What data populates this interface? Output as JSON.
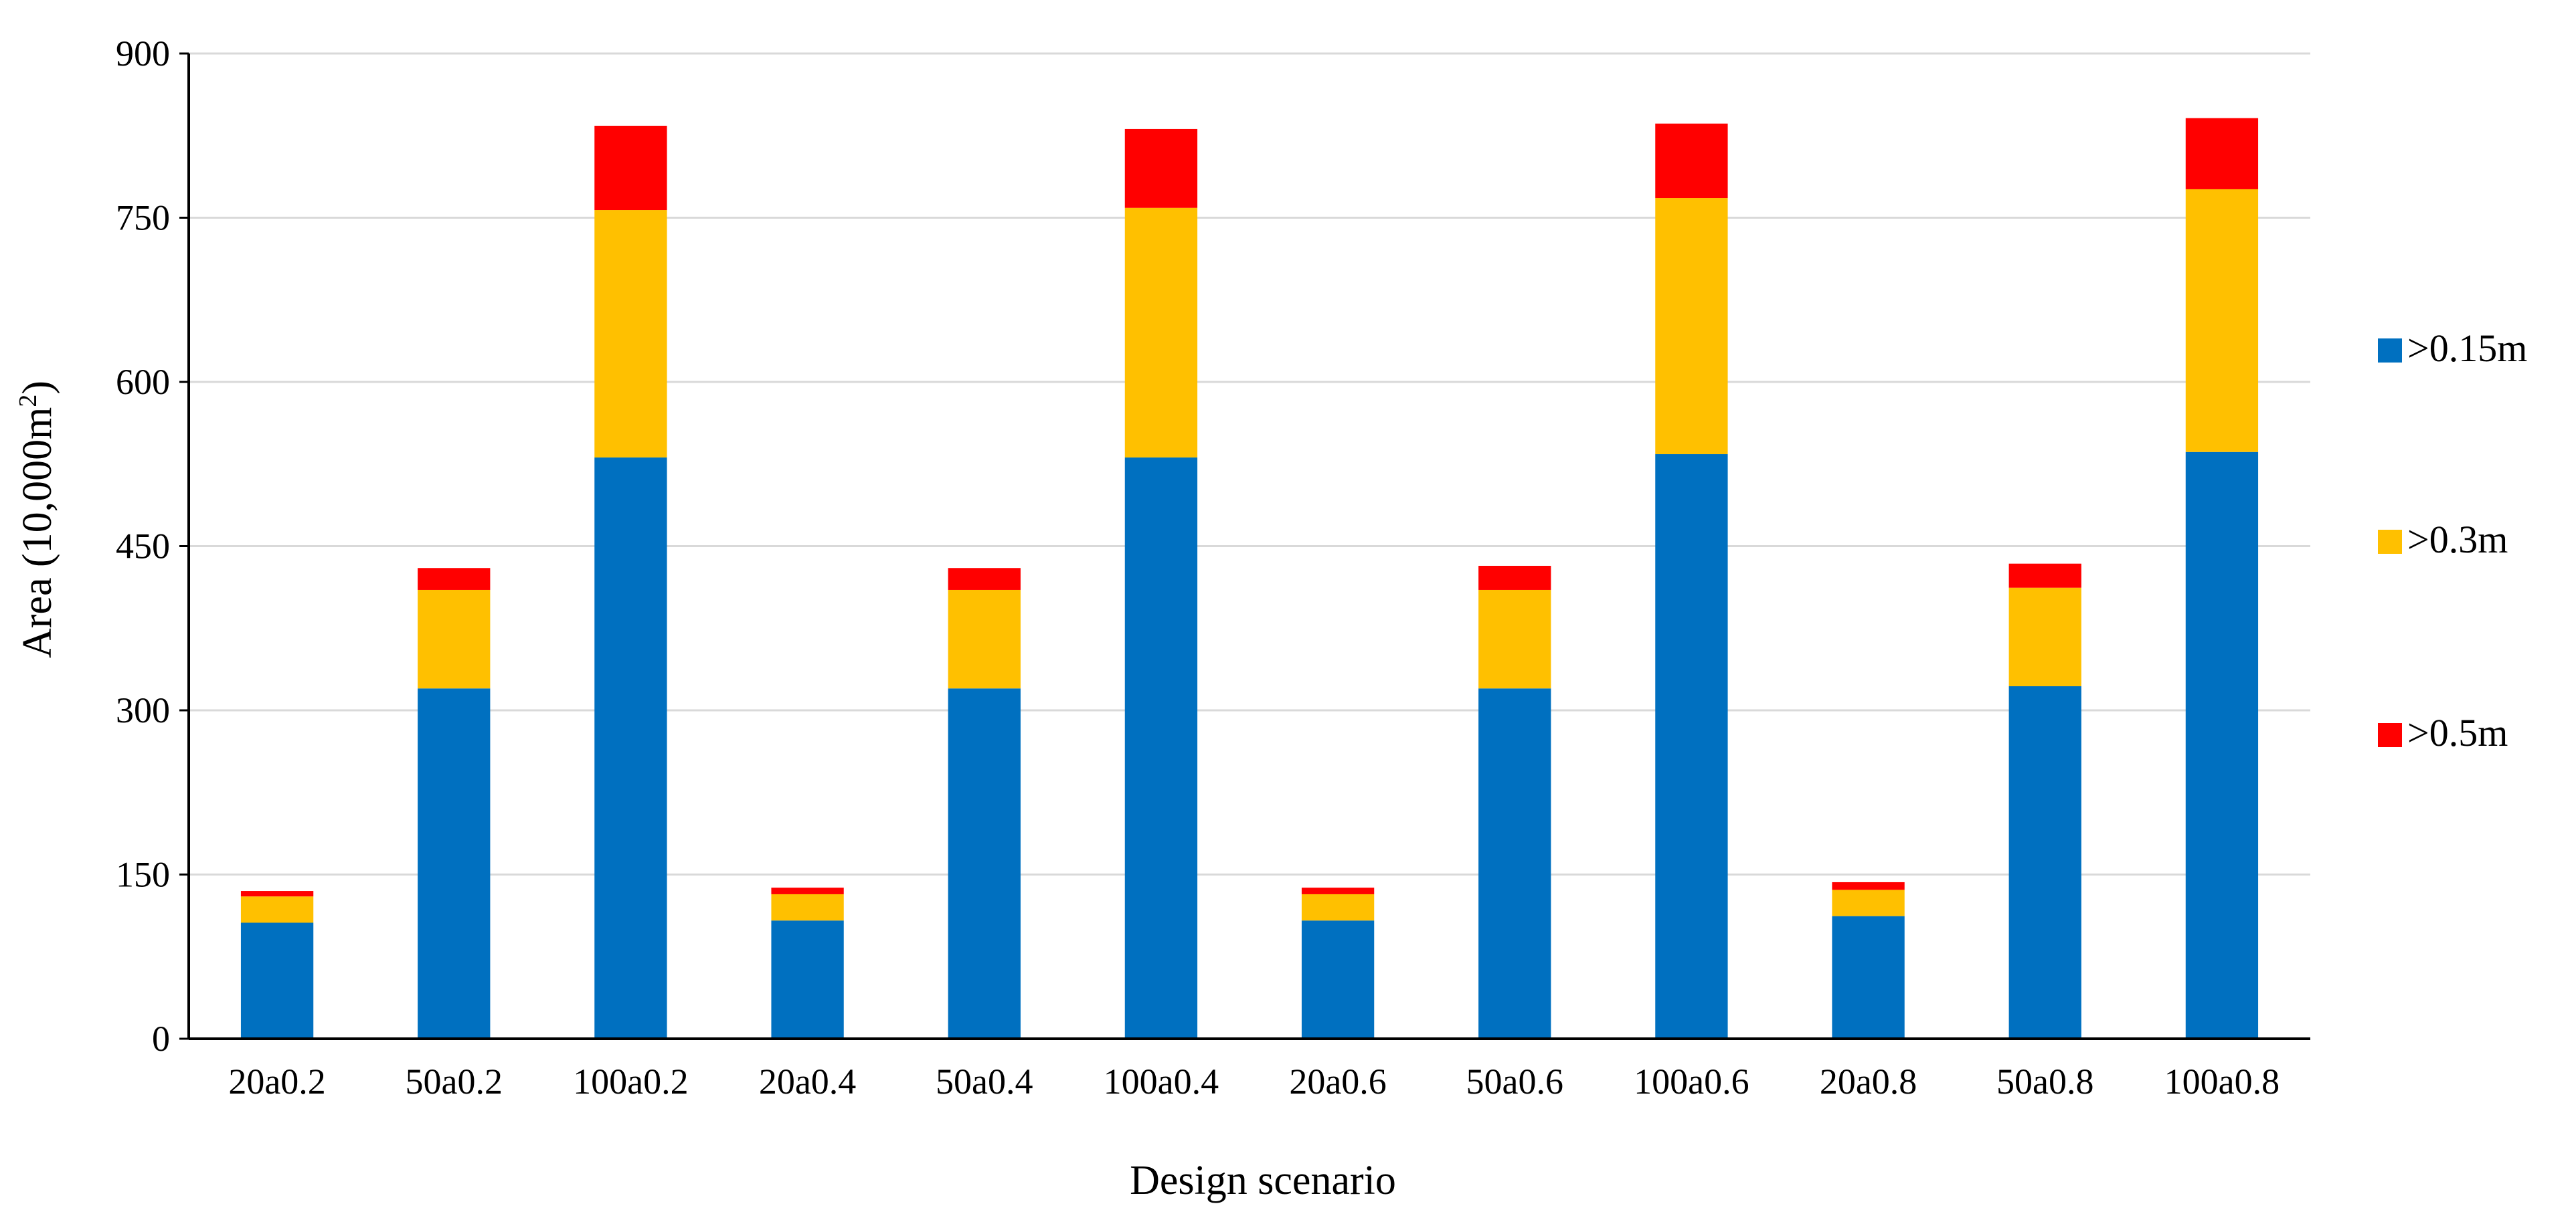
{
  "chart_data": {
    "type": "bar",
    "stacked": true,
    "xlabel": "Design scenario",
    "ylabel": "Area (10,000m",
    "ylabel_sup": "2",
    "ylabel_close": ")",
    "ylim": [
      0,
      900
    ],
    "yticks": [
      0,
      150,
      300,
      450,
      600,
      750,
      900
    ],
    "grid": true,
    "legend_position": "right",
    "categories": [
      "20a0.2",
      "50a0.2",
      "100a0.2",
      "20a0.4",
      "50a0.4",
      "100a0.4",
      "20a0.6",
      "50a0.6",
      "100a0.6",
      "20a0.8",
      "50a0.8",
      "100a0.8"
    ],
    "series": [
      {
        "name": ">0.15m",
        "color": "#0070C0",
        "values": [
          106,
          320,
          531,
          108,
          320,
          531,
          108,
          320,
          534,
          112,
          322,
          536
        ]
      },
      {
        "name": ">0.3m",
        "color": "#FFC000",
        "values": [
          24,
          90,
          226,
          24,
          90,
          228,
          24,
          90,
          234,
          24,
          90,
          240
        ]
      },
      {
        "name": ">0.5m",
        "color": "#FF0000",
        "values": [
          5,
          20,
          77,
          6,
          20,
          72,
          6,
          22,
          68,
          7,
          22,
          65
        ]
      }
    ]
  }
}
